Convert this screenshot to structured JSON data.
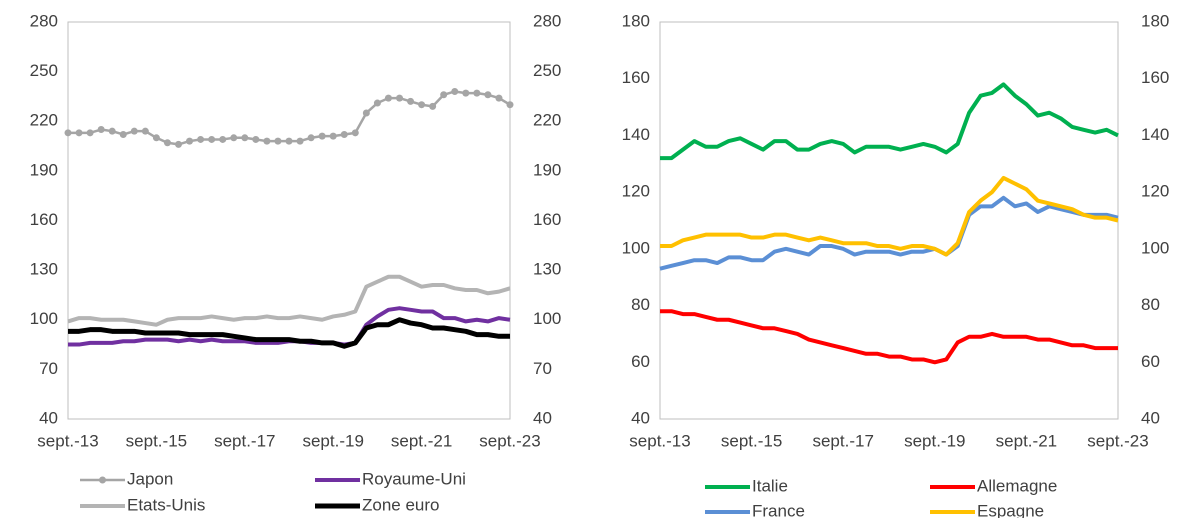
{
  "chart_data": [
    {
      "type": "line",
      "categories": [
        "sept.-13",
        null,
        null,
        null,
        null,
        null,
        null,
        null,
        "sept.-15",
        null,
        null,
        null,
        null,
        null,
        null,
        null,
        "sept.-17",
        null,
        null,
        null,
        null,
        null,
        null,
        null,
        "sept.-19",
        null,
        null,
        null,
        null,
        null,
        null,
        null,
        "sept.-21",
        null,
        null,
        null,
        null,
        null,
        null,
        null,
        "sept.-23"
      ],
      "series": [
        {
          "name": "Japon",
          "color": "#a5a5a5",
          "marker": true,
          "values": [
            213,
            213,
            213,
            215,
            214,
            212,
            214,
            214,
            210,
            207,
            206,
            208,
            209,
            209,
            209,
            210,
            210,
            209,
            208,
            208,
            208,
            208,
            210,
            211,
            211,
            212,
            213,
            225,
            231,
            234,
            234,
            232,
            230,
            229,
            236,
            238,
            237,
            237,
            236,
            234,
            230
          ]
        },
        {
          "name": "Royaume-Uni",
          "color": "#7030a0",
          "values": [
            85,
            85,
            86,
            86,
            86,
            87,
            87,
            88,
            88,
            88,
            87,
            88,
            87,
            88,
            87,
            87,
            87,
            86,
            86,
            86,
            87,
            87,
            86,
            86,
            86,
            85,
            86,
            97,
            102,
            106,
            107,
            106,
            105,
            105,
            101,
            101,
            99,
            100,
            99,
            101,
            100
          ]
        },
        {
          "name": "Etats-Unis",
          "color": "#b4b4b4",
          "values": [
            99,
            101,
            101,
            100,
            100,
            100,
            99,
            98,
            97,
            100,
            101,
            101,
            101,
            102,
            101,
            100,
            101,
            101,
            102,
            101,
            101,
            102,
            101,
            100,
            102,
            103,
            105,
            120,
            123,
            126,
            126,
            123,
            120,
            121,
            121,
            119,
            118,
            118,
            116,
            117,
            119
          ]
        },
        {
          "name": "Zone euro",
          "color": "#000000",
          "values": [
            93,
            93,
            94,
            94,
            93,
            93,
            93,
            92,
            92,
            92,
            92,
            91,
            91,
            91,
            91,
            90,
            89,
            88,
            88,
            88,
            88,
            87,
            87,
            86,
            86,
            84,
            86,
            95,
            97,
            97,
            100,
            98,
            97,
            95,
            95,
            94,
            93,
            91,
            91,
            90,
            90
          ]
        }
      ],
      "ylim": [
        40,
        280
      ],
      "yticks": [
        40,
        70,
        100,
        130,
        160,
        190,
        220,
        250,
        280
      ],
      "y2lim": [
        40,
        280
      ],
      "y2ticks": [
        40,
        70,
        100,
        130,
        160,
        190,
        220,
        250,
        280
      ]
    },
    {
      "type": "line",
      "categories": [
        "sept.-13",
        null,
        null,
        null,
        null,
        null,
        null,
        null,
        "sept.-15",
        null,
        null,
        null,
        null,
        null,
        null,
        null,
        "sept.-17",
        null,
        null,
        null,
        null,
        null,
        null,
        null,
        "sept.-19",
        null,
        null,
        null,
        null,
        null,
        null,
        null,
        "sept.-21",
        null,
        null,
        null,
        null,
        null,
        null,
        null,
        "sept.-23"
      ],
      "series": [
        {
          "name": "Italie",
          "color": "#00b050",
          "values": [
            132,
            132,
            135,
            138,
            136,
            136,
            138,
            139,
            137,
            135,
            138,
            138,
            135,
            135,
            137,
            138,
            137,
            134,
            136,
            136,
            136,
            135,
            136,
            137,
            136,
            134,
            137,
            148,
            154,
            155,
            158,
            154,
            151,
            147,
            148,
            146,
            143,
            142,
            141,
            142,
            140
          ]
        },
        {
          "name": "Allemagne",
          "color": "#ff0000",
          "values": [
            78,
            78,
            77,
            77,
            76,
            75,
            75,
            74,
            73,
            72,
            72,
            71,
            70,
            68,
            67,
            66,
            65,
            64,
            63,
            63,
            62,
            62,
            61,
            61,
            60,
            61,
            67,
            69,
            69,
            70,
            69,
            69,
            69,
            68,
            68,
            67,
            66,
            66,
            65,
            65,
            65
          ]
        },
        {
          "name": "France",
          "color": "#5b8fd5",
          "values": [
            93,
            94,
            95,
            96,
            96,
            95,
            97,
            97,
            96,
            96,
            99,
            100,
            99,
            98,
            101,
            101,
            100,
            98,
            99,
            99,
            99,
            98,
            99,
            99,
            100,
            98,
            101,
            112,
            115,
            115,
            118,
            115,
            116,
            113,
            115,
            114,
            113,
            112,
            112,
            112,
            111
          ]
        },
        {
          "name": "Espagne",
          "color": "#ffc000",
          "values": [
            101,
            101,
            103,
            104,
            105,
            105,
            105,
            105,
            104,
            104,
            105,
            105,
            104,
            103,
            104,
            103,
            102,
            102,
            102,
            101,
            101,
            100,
            101,
            101,
            100,
            98,
            102,
            113,
            117,
            120,
            125,
            123,
            121,
            117,
            116,
            115,
            114,
            112,
            111,
            111,
            110
          ]
        }
      ],
      "ylim": [
        40,
        180
      ],
      "yticks": [
        40,
        60,
        80,
        100,
        120,
        140,
        160,
        180
      ],
      "y2lim": [
        40,
        180
      ],
      "y2ticks": [
        40,
        60,
        80,
        100,
        120,
        140,
        160,
        180
      ]
    }
  ]
}
